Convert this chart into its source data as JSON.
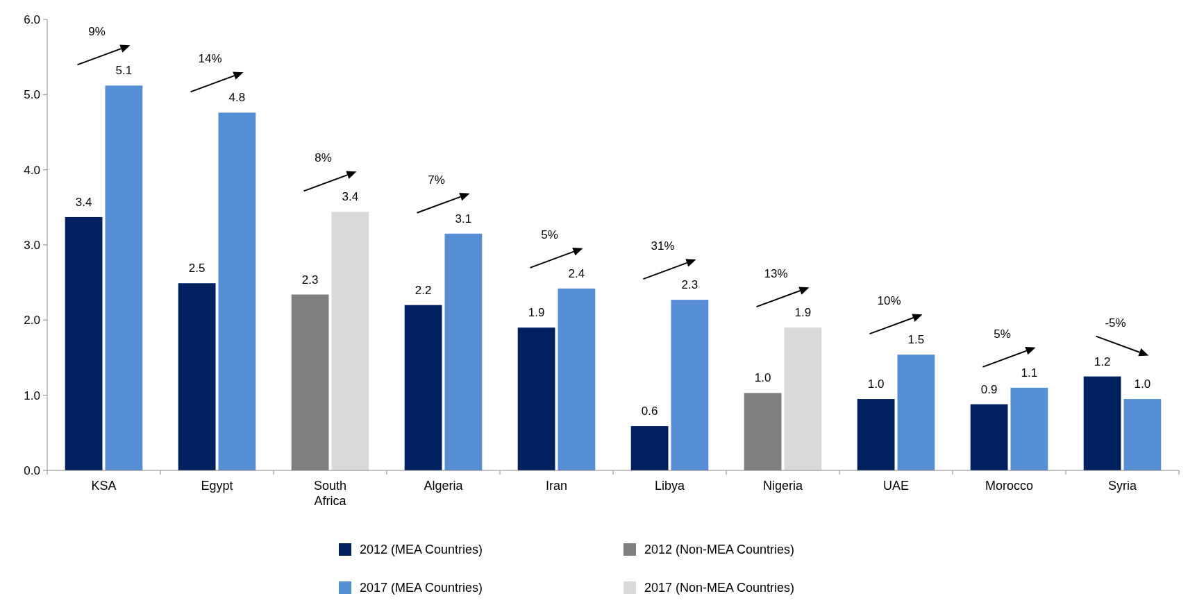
{
  "chart_data": {
    "type": "bar",
    "categories": [
      "KSA",
      "Egypt",
      "South\nAfrica",
      "Algeria",
      "Iran",
      "Libya",
      "Nigeria",
      "UAE",
      "Morocco",
      "Syria"
    ],
    "series": [
      {
        "name": "2012 (MEA Countries)",
        "color": "#002060",
        "values": [
          3.37,
          2.49,
          null,
          2.2,
          1.9,
          0.59,
          null,
          0.95,
          0.88,
          1.25
        ],
        "value_labels": [
          "3.4",
          "2.5",
          null,
          "2.2",
          "1.9",
          "0.6",
          null,
          "1.0",
          "0.9",
          "1.2"
        ]
      },
      {
        "name": "2012 (Non-MEA Countries)",
        "color": "#7f7f7f",
        "values": [
          null,
          null,
          2.34,
          null,
          null,
          null,
          1.03,
          null,
          null,
          null
        ],
        "value_labels": [
          null,
          null,
          "2.3",
          null,
          null,
          null,
          "1.0",
          null,
          null,
          null
        ]
      },
      {
        "name": "2017 (MEA Countries)",
        "color": "#558ed5",
        "values": [
          5.12,
          4.76,
          null,
          3.15,
          2.42,
          2.27,
          null,
          1.54,
          1.1,
          0.95
        ],
        "value_labels": [
          "5.1",
          "4.8",
          null,
          "3.1",
          "2.4",
          "2.3",
          null,
          "1.5",
          "1.1",
          "1.0"
        ]
      },
      {
        "name": "2017 (Non-MEA Countries)",
        "color": "#d9d9d9",
        "values": [
          null,
          null,
          3.44,
          null,
          null,
          null,
          1.9,
          null,
          null,
          null
        ],
        "value_labels": [
          null,
          null,
          "3.4",
          null,
          null,
          null,
          "1.9",
          null,
          null,
          null
        ]
      }
    ],
    "ylim": [
      0,
      6
    ],
    "yticks": [
      {
        "value": 0,
        "label": "0.0"
      },
      {
        "value": 1,
        "label": "1.0"
      },
      {
        "value": 2,
        "label": "2.0"
      },
      {
        "value": 3,
        "label": "3.0"
      },
      {
        "value": 4,
        "label": "4.0"
      },
      {
        "value": 5,
        "label": "5.0"
      },
      {
        "value": 6,
        "label": "6.0"
      }
    ],
    "annotations": [
      "9%",
      "14%",
      "8%",
      "7%",
      "5%",
      "31%",
      "13%",
      "10%",
      "5%",
      "-5%"
    ],
    "grid": false,
    "legend": "bottom"
  }
}
